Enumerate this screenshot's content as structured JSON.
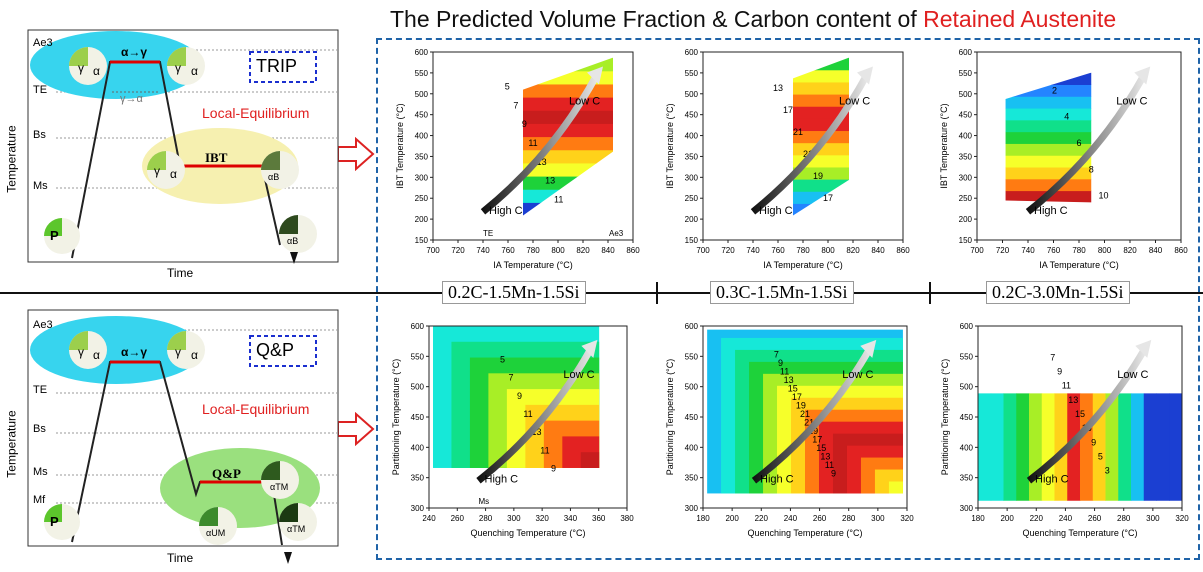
{
  "header": {
    "title_prefix": "The Predicted Volume Fraction & Carbon content of ",
    "title_highlight": "Retained Austenite"
  },
  "colors": {
    "accent_red": "#e02020",
    "frame_blue": "#1f63a8",
    "cyan_blob": "#37d4ee",
    "yellow_blob": "#f6f0b0",
    "green_blob": "#9ae07e"
  },
  "trip_schematic": {
    "mode_label": "TRIP",
    "y_axis_label": "Temperature",
    "x_axis_label": "Time",
    "temps": [
      "Ae3",
      "TE",
      "Bs",
      "Ms"
    ],
    "transform_label": "α→γ",
    "reverse_label": "γ→α",
    "stage_label": "IBT",
    "equilibrium_label": "Local-Equilibrium",
    "phases": {
      "gamma": "γ",
      "alpha": "α",
      "alpha_b": "αB",
      "pearlite": "P"
    }
  },
  "qp_schematic": {
    "mode_label": "Q&P",
    "y_axis_label": "Temperature",
    "x_axis_label": "Time",
    "temps": [
      "Ae3",
      "TE",
      "Bs",
      "Ms",
      "Mf"
    ],
    "transform_label": "α→γ",
    "stage_label": "Q&P",
    "equilibrium_label": "Local-Equilibrium",
    "phases": {
      "gamma": "γ",
      "alpha": "α",
      "alpha_tm": "αTM",
      "alpha_um": "αUM",
      "pearlite": "P"
    }
  },
  "steel_labels": [
    "0.2C-1.5Mn-1.5Si",
    "0.3C-1.5Mn-1.5Si",
    "0.2C-3.0Mn-1.5Si"
  ],
  "arrow_labels": {
    "high": "High C",
    "low": "Low C"
  },
  "chart_data": [
    {
      "type": "heatmap",
      "id": "trip-a",
      "xlabel": "IA Temperature (°C)",
      "ylabel": "IBT Temperature (°C)",
      "xlim": [
        700,
        860
      ],
      "ylim": [
        150,
        600
      ],
      "xticks": [
        700,
        720,
        740,
        760,
        780,
        800,
        820,
        840,
        860
      ],
      "yticks": [
        150,
        200,
        250,
        300,
        350,
        400,
        450,
        500,
        550,
        600
      ],
      "contour_labels": [
        "5",
        "7",
        "9",
        "11",
        "13",
        "13",
        "11"
      ],
      "annotations": [
        "TE",
        "Ae3"
      ]
    },
    {
      "type": "heatmap",
      "id": "trip-b",
      "xlabel": "IA Temperature (°C)",
      "ylabel": "IBT Temperature (°C)",
      "xlim": [
        700,
        860
      ],
      "ylim": [
        150,
        600
      ],
      "xticks": [
        700,
        720,
        740,
        760,
        780,
        800,
        820,
        840,
        860
      ],
      "yticks": [
        150,
        200,
        250,
        300,
        350,
        400,
        450,
        500,
        550,
        600
      ],
      "contour_labels": [
        "13",
        "17",
        "21",
        "21",
        "19",
        "17"
      ]
    },
    {
      "type": "heatmap",
      "id": "trip-c",
      "xlabel": "IA Temperature (°C)",
      "ylabel": "IBT Temperature (°C)",
      "xlim": [
        700,
        860
      ],
      "ylim": [
        150,
        600
      ],
      "xticks": [
        700,
        720,
        740,
        760,
        780,
        800,
        820,
        840,
        860
      ],
      "yticks": [
        150,
        200,
        250,
        300,
        350,
        400,
        450,
        500,
        550,
        600
      ],
      "contour_labels": [
        "2",
        "4",
        "6",
        "8",
        "10"
      ]
    },
    {
      "type": "heatmap",
      "id": "qp-a",
      "xlabel": "Quenching Temperature (°C)",
      "ylabel": "Partitioning Temperature (°C)",
      "xlim": [
        240,
        380
      ],
      "ylim": [
        300,
        600
      ],
      "xticks": [
        240,
        260,
        280,
        300,
        320,
        340,
        360,
        380
      ],
      "yticks": [
        300,
        350,
        400,
        450,
        500,
        550,
        600
      ],
      "contour_labels": [
        "5",
        "7",
        "9",
        "11",
        "13",
        "11",
        "9"
      ],
      "annotations": [
        "Ms"
      ]
    },
    {
      "type": "heatmap",
      "id": "qp-b",
      "xlabel": "Quenching Temperature (°C)",
      "ylabel": "Partitioning Temperature (°C)",
      "xlim": [
        180,
        320
      ],
      "ylim": [
        300,
        600
      ],
      "xticks": [
        180,
        200,
        220,
        240,
        260,
        280,
        300,
        320
      ],
      "yticks": [
        300,
        350,
        400,
        450,
        500,
        550,
        600
      ],
      "contour_labels": [
        "7",
        "9",
        "11",
        "13",
        "15",
        "17",
        "19",
        "21",
        "21",
        "19",
        "17",
        "15",
        "13",
        "11",
        "9"
      ]
    },
    {
      "type": "heatmap",
      "id": "qp-c",
      "xlabel": "Quenching Temperature (°C)",
      "ylabel": "Partitioning Temperature (°C)",
      "xlim": [
        180,
        320
      ],
      "ylim": [
        300,
        600
      ],
      "xticks": [
        180,
        200,
        220,
        240,
        260,
        280,
        300,
        320
      ],
      "yticks": [
        300,
        350,
        400,
        450,
        500,
        550,
        600
      ],
      "contour_labels": [
        "7",
        "9",
        "11",
        "13",
        "15",
        "15",
        "9",
        "5",
        "3"
      ]
    }
  ]
}
